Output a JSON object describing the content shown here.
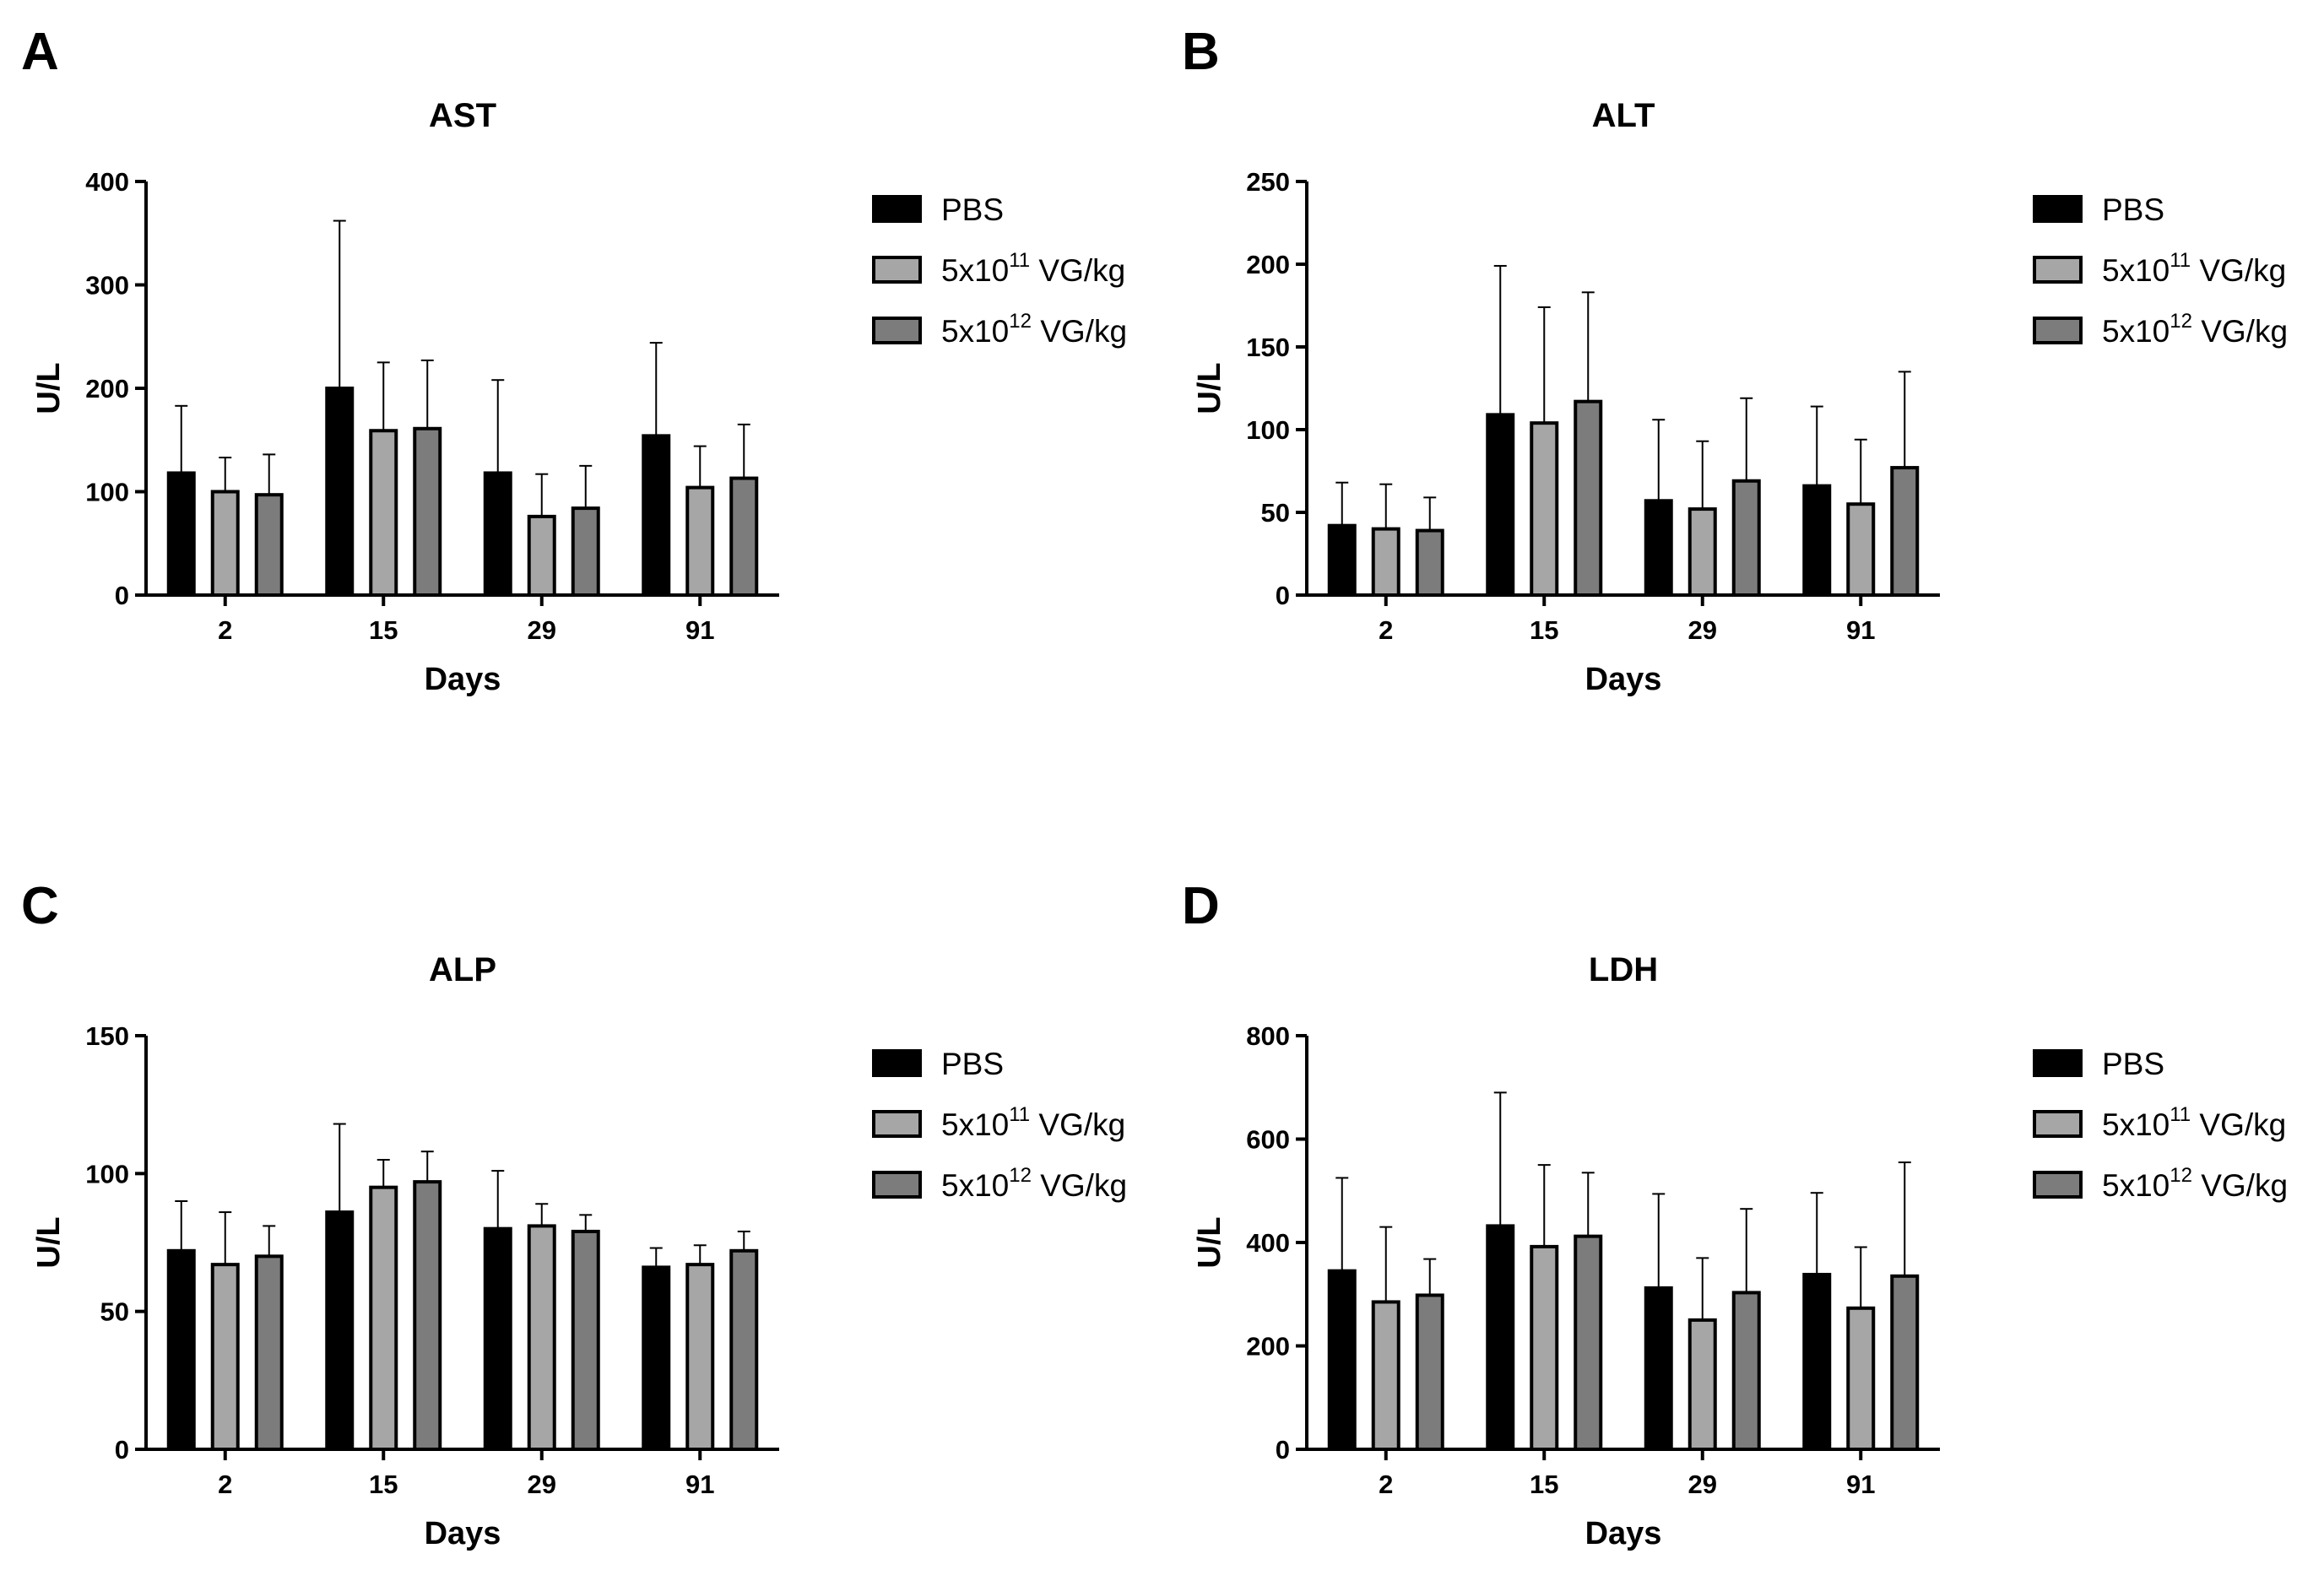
{
  "figure": {
    "series_styles": [
      {
        "name": "PBS",
        "color": "#000000"
      },
      {
        "name": "5x10^11 VG/kg",
        "color": "#a6a6a6"
      },
      {
        "name": "5x10^12 VG/kg",
        "color": "#7c7c7c"
      }
    ],
    "legend": {
      "items": [
        {
          "base": "PBS",
          "sup": "",
          "tail": ""
        },
        {
          "base": "5x10",
          "sup": "11",
          "tail": " VG/kg"
        },
        {
          "base": "5x10",
          "sup": "12",
          "tail": " VG/kg"
        }
      ]
    }
  },
  "chart_data": [
    {
      "panel": "A",
      "type": "bar",
      "title": "AST",
      "xlabel": "Days",
      "ylabel": "U/L",
      "categories": [
        "2",
        "15",
        "29",
        "91"
      ],
      "ylim": [
        0,
        400
      ],
      "yticks": [
        0,
        100,
        200,
        300,
        400
      ],
      "legend_position": "right",
      "series": [
        {
          "name": "PBS",
          "values": [
            118,
            200,
            118,
            154
          ],
          "error": [
            65,
            162,
            90,
            90
          ]
        },
        {
          "name": "5x10^11 VG/kg",
          "values": [
            100,
            159,
            76,
            104
          ],
          "error": [
            33,
            66,
            41,
            40
          ]
        },
        {
          "name": "5x10^12 VG/kg",
          "values": [
            97,
            161,
            84,
            113
          ],
          "error": [
            39,
            66,
            41,
            52
          ]
        }
      ]
    },
    {
      "panel": "B",
      "type": "bar",
      "title": "ALT",
      "xlabel": "Days",
      "ylabel": "U/L",
      "categories": [
        "2",
        "15",
        "29",
        "91"
      ],
      "ylim": [
        0,
        250
      ],
      "yticks": [
        0,
        50,
        100,
        150,
        200,
        250
      ],
      "legend_position": "right",
      "series": [
        {
          "name": "PBS",
          "values": [
            42,
            109,
            57,
            66
          ],
          "error": [
            26,
            90,
            49,
            48
          ]
        },
        {
          "name": "5x10^11 VG/kg",
          "values": [
            40,
            104,
            52,
            55
          ],
          "error": [
            27,
            70,
            41,
            39
          ]
        },
        {
          "name": "5x10^12 VG/kg",
          "values": [
            39,
            117,
            69,
            77
          ],
          "error": [
            20,
            66,
            50,
            58
          ]
        }
      ]
    },
    {
      "panel": "C",
      "type": "bar",
      "title": "ALP",
      "xlabel": "Days",
      "ylabel": "U/L",
      "categories": [
        "2",
        "15",
        "29",
        "91"
      ],
      "ylim": [
        0,
        150
      ],
      "yticks": [
        0,
        50,
        100,
        150
      ],
      "legend_position": "right",
      "series": [
        {
          "name": "PBS",
          "values": [
            72,
            86,
            80,
            66
          ],
          "error": [
            18,
            32,
            21,
            7
          ]
        },
        {
          "name": "5x10^11 VG/kg",
          "values": [
            67,
            95,
            81,
            67
          ],
          "error": [
            19,
            10,
            8,
            7
          ]
        },
        {
          "name": "5x10^12 VG/kg",
          "values": [
            70,
            97,
            79,
            72
          ],
          "error": [
            11,
            11,
            6,
            7
          ]
        }
      ]
    },
    {
      "panel": "D",
      "type": "bar",
      "title": "LDH",
      "xlabel": "Days",
      "ylabel": "U/L",
      "categories": [
        "2",
        "15",
        "29",
        "91"
      ],
      "ylim": [
        0,
        800
      ],
      "yticks": [
        0,
        200,
        400,
        600,
        800
      ],
      "legend_position": "right",
      "series": [
        {
          "name": "PBS",
          "values": [
            345,
            432,
            312,
            338
          ],
          "error": [
            180,
            258,
            182,
            158
          ]
        },
        {
          "name": "5x10^11 VG/kg",
          "values": [
            285,
            392,
            250,
            273
          ],
          "error": [
            145,
            158,
            120,
            118
          ]
        },
        {
          "name": "5x10^12 VG/kg",
          "values": [
            298,
            412,
            303,
            335
          ],
          "error": [
            70,
            123,
            162,
            220
          ]
        }
      ]
    }
  ]
}
